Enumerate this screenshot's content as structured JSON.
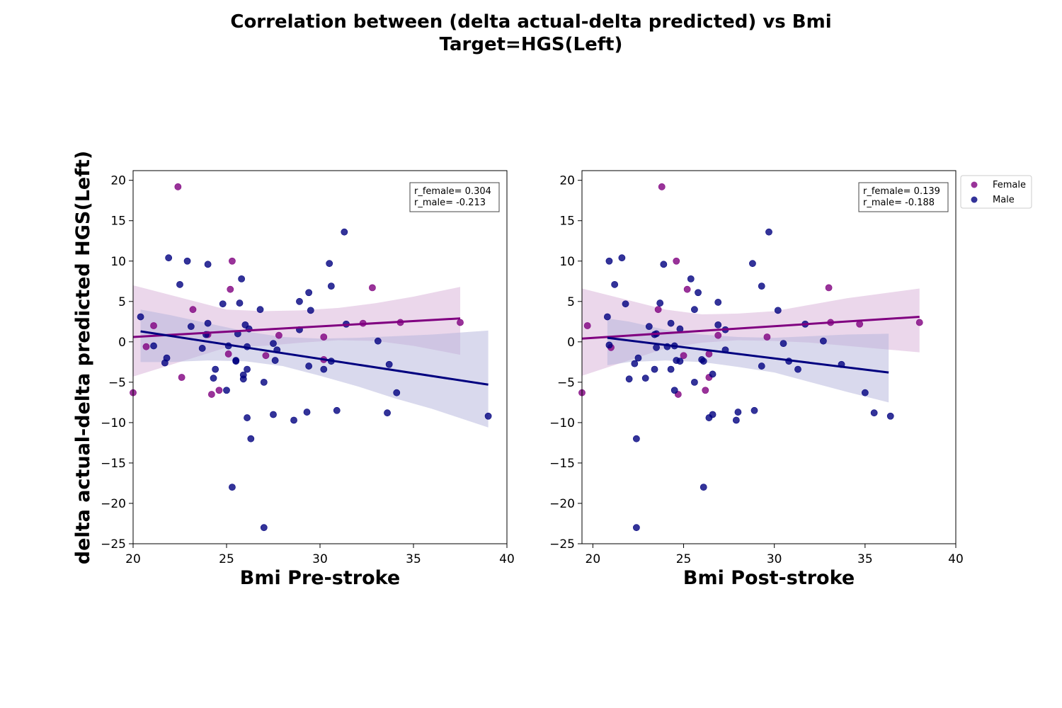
{
  "figure": {
    "title_line1": "Correlation between (delta actual-delta predicted) vs Bmi",
    "title_line2": "Target=HGS(Left)",
    "shared_ylabel": "delta actual-delta predicted HGS(Left)"
  },
  "colors": {
    "female": "#800080",
    "male": "#00007f",
    "female_band": "#d8b0d8",
    "male_band": "#b4b4dc"
  },
  "legend": {
    "items": [
      "Female",
      "Male"
    ],
    "placement": "outside-right-top"
  },
  "chart_data": [
    {
      "type": "scatter",
      "xlabel": "Bmi Pre-stroke",
      "xlim": [
        20,
        40
      ],
      "ylim": [
        -25,
        21.2
      ],
      "xticks": [
        20,
        25,
        30,
        35,
        40
      ],
      "yticks": [
        -25,
        -20,
        -15,
        -10,
        -5,
        0,
        5,
        10,
        15,
        20
      ],
      "annotation": [
        "r_female= 0.304",
        "r_male= -0.213"
      ],
      "series": [
        {
          "name": "Female",
          "points": [
            [
              20.0,
              -6.3
            ],
            [
              20.7,
              -0.6
            ],
            [
              21.1,
              2.0
            ],
            [
              22.4,
              19.2
            ],
            [
              22.6,
              -4.4
            ],
            [
              23.2,
              4.0
            ],
            [
              24.0,
              0.9
            ],
            [
              24.2,
              -6.5
            ],
            [
              24.6,
              -6.0
            ],
            [
              25.1,
              -1.5
            ],
            [
              25.2,
              6.5
            ],
            [
              25.3,
              10.0
            ],
            [
              27.1,
              -1.7
            ],
            [
              27.8,
              0.8
            ],
            [
              30.2,
              0.6
            ],
            [
              30.2,
              -2.2
            ],
            [
              32.3,
              2.3
            ],
            [
              32.8,
              6.7
            ],
            [
              34.3,
              2.4
            ],
            [
              37.5,
              2.4
            ]
          ],
          "fit": {
            "x": [
              20.0,
              37.5
            ],
            "y": [
              0.6,
              2.9
            ]
          },
          "ci": {
            "x": [
              20.0,
              25.0,
              27.0,
              29.0,
              31.0,
              33.0,
              35.0,
              37.5
            ],
            "lower": [
              -4.3,
              -0.7,
              -0.5,
              -0.1,
              0.2,
              0.1,
              -0.5,
              -1.6
            ],
            "upper": [
              7.0,
              4.0,
              3.8,
              3.9,
              4.2,
              4.8,
              5.6,
              6.8
            ]
          }
        },
        {
          "name": "Male",
          "points": [
            [
              20.4,
              3.1
            ],
            [
              21.1,
              -0.5
            ],
            [
              21.7,
              -2.6
            ],
            [
              21.8,
              -2.0
            ],
            [
              21.9,
              10.4
            ],
            [
              22.5,
              7.1
            ],
            [
              22.9,
              10.0
            ],
            [
              23.1,
              1.9
            ],
            [
              23.7,
              -0.8
            ],
            [
              23.9,
              0.9
            ],
            [
              24.0,
              2.3
            ],
            [
              24.0,
              9.6
            ],
            [
              24.3,
              -4.5
            ],
            [
              24.4,
              -3.4
            ],
            [
              24.8,
              4.7
            ],
            [
              25.0,
              -6.0
            ],
            [
              25.1,
              -0.5
            ],
            [
              25.5,
              -2.4
            ],
            [
              25.5,
              -2.3
            ],
            [
              25.3,
              -18.0
            ],
            [
              25.6,
              1.0
            ],
            [
              25.7,
              4.8
            ],
            [
              25.8,
              7.8
            ],
            [
              25.9,
              -4.1
            ],
            [
              25.9,
              -4.6
            ],
            [
              26.0,
              2.1
            ],
            [
              26.1,
              -0.6
            ],
            [
              26.1,
              -3.4
            ],
            [
              26.2,
              1.6
            ],
            [
              26.1,
              -9.4
            ],
            [
              26.3,
              -12.0
            ],
            [
              26.8,
              4.0
            ],
            [
              27.0,
              -23.0
            ],
            [
              27.0,
              -5.0
            ],
            [
              27.5,
              -0.2
            ],
            [
              27.5,
              -9.0
            ],
            [
              27.6,
              -2.3
            ],
            [
              27.7,
              -1.0
            ],
            [
              28.6,
              -9.7
            ],
            [
              28.9,
              1.5
            ],
            [
              28.9,
              5.0
            ],
            [
              29.3,
              -8.7
            ],
            [
              29.4,
              6.1
            ],
            [
              29.5,
              3.9
            ],
            [
              29.4,
              -3.0
            ],
            [
              30.2,
              -3.4
            ],
            [
              30.5,
              9.7
            ],
            [
              30.6,
              6.9
            ],
            [
              30.6,
              -2.4
            ],
            [
              30.9,
              -8.5
            ],
            [
              31.3,
              13.6
            ],
            [
              31.4,
              2.2
            ],
            [
              33.1,
              0.1
            ],
            [
              33.6,
              -8.8
            ],
            [
              33.7,
              -2.8
            ],
            [
              34.1,
              -6.3
            ],
            [
              39.0,
              -9.2
            ]
          ],
          "fit": {
            "x": [
              20.4,
              39.0
            ],
            "y": [
              1.3,
              -5.3
            ]
          },
          "ci": {
            "x": [
              20.4,
              22.0,
              24.0,
              26.0,
              28.0,
              30.0,
              32.0,
              34.0,
              36.0,
              39.0
            ],
            "lower": [
              -2.5,
              -2.5,
              -2.3,
              -2.4,
              -3.0,
              -4.2,
              -5.5,
              -7.0,
              -8.3,
              -10.6
            ],
            "upper": [
              4.0,
              3.3,
              2.3,
              1.3,
              0.6,
              0.4,
              0.5,
              0.7,
              0.9,
              1.4
            ]
          }
        }
      ]
    },
    {
      "type": "scatter",
      "xlabel": "Bmi Post-stroke",
      "xlim": [
        19.4,
        40
      ],
      "ylim": [
        -25,
        21.2
      ],
      "xticks": [
        20,
        25,
        30,
        35,
        40
      ],
      "yticks": [
        -25,
        -20,
        -15,
        -10,
        -5,
        0,
        5,
        10,
        15,
        20
      ],
      "annotation": [
        "r_female= 0.139",
        "r_male= -0.188"
      ],
      "series": [
        {
          "name": "Female",
          "points": [
            [
              19.4,
              -6.3
            ],
            [
              19.7,
              2.0
            ],
            [
              21.0,
              -0.7
            ],
            [
              23.6,
              4.0
            ],
            [
              23.8,
              19.2
            ],
            [
              24.6,
              10.0
            ],
            [
              24.7,
              -6.5
            ],
            [
              25.0,
              -1.7
            ],
            [
              25.2,
              6.5
            ],
            [
              26.2,
              -6.0
            ],
            [
              26.4,
              -1.5
            ],
            [
              26.4,
              -4.4
            ],
            [
              26.9,
              0.8
            ],
            [
              29.6,
              0.6
            ],
            [
              33.0,
              6.7
            ],
            [
              33.1,
              2.4
            ],
            [
              34.7,
              2.2
            ],
            [
              38.0,
              2.4
            ]
          ],
          "fit": {
            "x": [
              19.4,
              38.0
            ],
            "y": [
              0.4,
              3.1
            ]
          },
          "ci": {
            "x": [
              19.4,
              24.0,
              26.0,
              28.0,
              30.0,
              32.0,
              34.0,
              36.0,
              38.0
            ],
            "lower": [
              -4.2,
              -0.8,
              -0.1,
              0.2,
              0.1,
              -0.1,
              -0.5,
              -0.9,
              -1.3
            ],
            "upper": [
              6.6,
              4.0,
              3.4,
              3.5,
              3.8,
              4.6,
              5.4,
              6.0,
              6.6
            ]
          }
        },
        {
          "name": "Male",
          "points": [
            [
              20.8,
              3.1
            ],
            [
              20.9,
              10.0
            ],
            [
              20.9,
              -0.4
            ],
            [
              21.2,
              7.1
            ],
            [
              21.6,
              10.4
            ],
            [
              21.8,
              4.7
            ],
            [
              22.0,
              -4.6
            ],
            [
              22.3,
              -2.7
            ],
            [
              22.4,
              -12.0
            ],
            [
              22.4,
              -23.0
            ],
            [
              22.5,
              -2.0
            ],
            [
              22.9,
              -4.5
            ],
            [
              23.1,
              1.9
            ],
            [
              23.4,
              -3.4
            ],
            [
              23.4,
              0.9
            ],
            [
              23.5,
              -0.7
            ],
            [
              23.5,
              1.0
            ],
            [
              23.7,
              4.8
            ],
            [
              23.9,
              9.6
            ],
            [
              24.1,
              -0.6
            ],
            [
              24.3,
              2.3
            ],
            [
              24.3,
              -3.4
            ],
            [
              24.5,
              -6.0
            ],
            [
              24.5,
              -0.5
            ],
            [
              24.6,
              -2.3
            ],
            [
              24.8,
              1.6
            ],
            [
              24.8,
              -2.4
            ],
            [
              25.4,
              7.8
            ],
            [
              25.6,
              4.0
            ],
            [
              25.6,
              -5.0
            ],
            [
              25.8,
              6.1
            ],
            [
              26.0,
              -2.2
            ],
            [
              26.1,
              -2.4
            ],
            [
              26.1,
              -18.0
            ],
            [
              26.4,
              -9.4
            ],
            [
              26.6,
              -9.0
            ],
            [
              26.6,
              -4.0
            ],
            [
              26.9,
              2.1
            ],
            [
              26.9,
              4.9
            ],
            [
              27.3,
              1.5
            ],
            [
              27.3,
              -1.0
            ],
            [
              27.9,
              -9.7
            ],
            [
              28.0,
              -8.7
            ],
            [
              28.8,
              9.7
            ],
            [
              28.9,
              -8.5
            ],
            [
              29.3,
              6.9
            ],
            [
              29.3,
              -3.0
            ],
            [
              29.7,
              13.6
            ],
            [
              30.2,
              3.9
            ],
            [
              30.5,
              -0.2
            ],
            [
              30.8,
              -2.4
            ],
            [
              31.3,
              -3.4
            ],
            [
              31.7,
              2.2
            ],
            [
              32.7,
              0.1
            ],
            [
              33.7,
              -2.8
            ],
            [
              35.0,
              -6.3
            ],
            [
              35.5,
              -8.8
            ],
            [
              36.4,
              -9.2
            ]
          ],
          "fit": {
            "x": [
              20.8,
              36.3
            ],
            "y": [
              0.5,
              -3.8
            ]
          },
          "ci": {
            "x": [
              20.8,
              22.0,
              24.0,
              26.0,
              28.0,
              30.0,
              32.0,
              34.0,
              36.3
            ],
            "lower": [
              -2.9,
              -2.5,
              -2.3,
              -2.5,
              -3.1,
              -3.8,
              -5.0,
              -6.2,
              -7.5
            ],
            "upper": [
              2.9,
              2.5,
              1.5,
              0.9,
              0.6,
              0.5,
              0.7,
              0.9,
              1.0
            ]
          }
        }
      ]
    }
  ]
}
